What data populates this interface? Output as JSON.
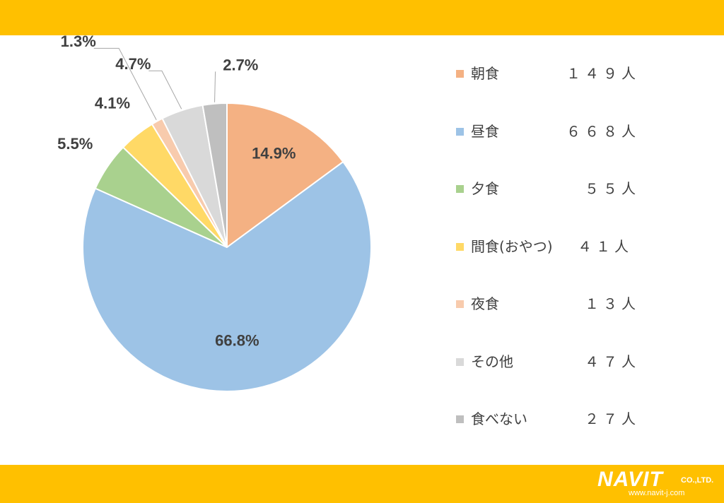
{
  "theme": {
    "band_color": "#FFC000"
  },
  "chart_data": {
    "type": "pie",
    "title": "",
    "slices": [
      {
        "label": "朝食",
        "count": "１４９人",
        "percent": 14.9,
        "percent_label": "14.9%",
        "color": "#F4B183"
      },
      {
        "label": "昼食",
        "count": "６６８人",
        "percent": 66.8,
        "percent_label": "66.8%",
        "color": "#9DC3E6"
      },
      {
        "label": "夕食",
        "count": "５５人",
        "percent": 5.5,
        "percent_label": "5.5%",
        "color": "#A9D18E"
      },
      {
        "label": "間食(おやつ)",
        "count": "４１人",
        "percent": 4.1,
        "percent_label": "4.1%",
        "color": "#FFD966"
      },
      {
        "label": "夜食",
        "count": "１３人",
        "percent": 1.3,
        "percent_label": "1.3%",
        "color": "#F8CBAD"
      },
      {
        "label": "その他",
        "count": "４７人",
        "percent": 4.7,
        "percent_label": "4.7%",
        "color": "#D9D9D9"
      },
      {
        "label": "食べない",
        "count": "２７人",
        "percent": 2.7,
        "percent_label": "2.7%",
        "color": "#BFBFBF"
      }
    ],
    "legend_position": "right"
  },
  "logo": {
    "word": "NAVIT",
    "suffix": "CO.,LTD.",
    "url": "www.navit-j.com"
  }
}
